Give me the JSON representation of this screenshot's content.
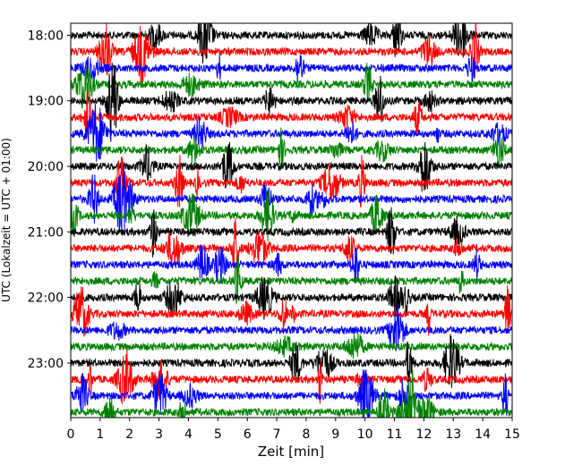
{
  "chart_data": {
    "type": "line",
    "title": "",
    "xlabel": "Zeit  [min]",
    "ylabel": "UTC (Lokalzeit = UTC + 01:00)",
    "xlim": [
      0,
      15
    ],
    "x_ticks": [
      "0",
      "1",
      "2",
      "3",
      "4",
      "5",
      "6",
      "7",
      "8",
      "9",
      "10",
      "11",
      "12",
      "13",
      "14",
      "15"
    ],
    "y_ticks": [
      {
        "label": "18:00",
        "value": 0
      },
      {
        "label": "19:00",
        "value": 60
      },
      {
        "label": "20:00",
        "value": 120
      },
      {
        "label": "21:00",
        "value": 180
      },
      {
        "label": "22:00",
        "value": 240
      },
      {
        "label": "23:00",
        "value": 300
      }
    ],
    "ylim_minutes_after_18": [
      -11,
      350
    ],
    "trace_interval_min": 15,
    "trace_count": 24,
    "trace_start": "18:00",
    "trace_end": "23:45",
    "color_cycle": [
      "#000000",
      "#ff0000",
      "#0000ff",
      "#008000"
    ],
    "grid": false,
    "legend": "none"
  }
}
